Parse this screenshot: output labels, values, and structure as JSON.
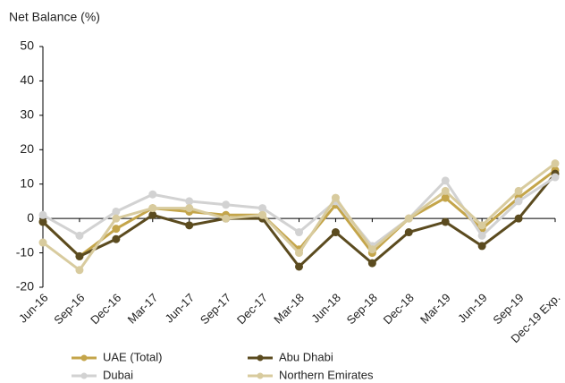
{
  "chart_data": {
    "type": "line",
    "title": "Net Balance (%)",
    "categories": [
      "Jun-16",
      "Sep-16",
      "Dec-16",
      "Mar-17",
      "Jun-17",
      "Sep-17",
      "Dec-17",
      "Mar-18",
      "Jun-18",
      "Sep-18",
      "Dec-18",
      "Mar-19",
      "Jun-19",
      "Sep-19",
      "Dec-19 Exp."
    ],
    "series": [
      {
        "name": "UAE (Total)",
        "color": "#c4a54a",
        "values": [
          -1,
          -11,
          -3,
          3,
          2,
          1,
          1,
          -9,
          4,
          -10,
          0,
          6,
          -3,
          6,
          14
        ]
      },
      {
        "name": "Abu Dhabi",
        "color": "#5b4b1f",
        "values": [
          -1,
          -11,
          -6,
          1,
          -2,
          0,
          0,
          -14,
          -4,
          -13,
          -4,
          -1,
          -8,
          0,
          13
        ]
      },
      {
        "name": "Dubai",
        "color": "#d2d2d2",
        "values": [
          1,
          -5,
          2,
          7,
          5,
          4,
          3,
          -4,
          5,
          -8,
          0,
          11,
          -5,
          5,
          12
        ]
      },
      {
        "name": "Northern Emirates",
        "color": "#d8cb9e",
        "values": [
          -7,
          -15,
          0,
          3,
          3,
          0,
          1,
          -10,
          6,
          -9,
          0,
          8,
          -2,
          8,
          16
        ]
      }
    ],
    "ylim": [
      -20,
      50
    ],
    "yticks": [
      -20,
      -10,
      0,
      10,
      20,
      30,
      40,
      50
    ],
    "grid": false
  }
}
